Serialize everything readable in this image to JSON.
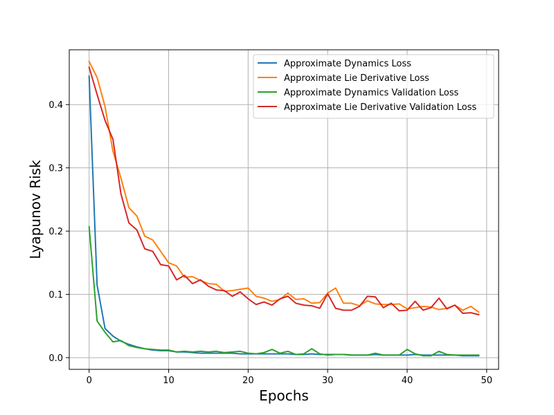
{
  "chart_data": {
    "type": "line",
    "xlabel": "Epochs",
    "ylabel": "Lyapunov Risk",
    "xlim": [
      -2.5,
      51.5
    ],
    "ylim": [
      -0.0185,
      0.4866
    ],
    "xticks": [
      0,
      10,
      20,
      30,
      40,
      50
    ],
    "yticks": [
      0.0,
      0.1,
      0.2,
      0.3,
      0.4
    ],
    "ytick_labels": [
      "0.0",
      "0.1",
      "0.2",
      "0.3",
      "0.4"
    ],
    "grid": true,
    "legend_position": "top-right",
    "x": [
      0,
      1,
      2,
      3,
      4,
      5,
      6,
      7,
      8,
      9,
      10,
      11,
      12,
      13,
      14,
      15,
      16,
      17,
      18,
      19,
      20,
      21,
      22,
      23,
      24,
      25,
      26,
      27,
      28,
      29,
      30,
      31,
      32,
      33,
      34,
      35,
      36,
      37,
      38,
      39,
      40,
      41,
      42,
      43,
      44,
      45,
      46,
      47,
      48,
      49
    ],
    "series": [
      {
        "name": "Approximate Dynamics Loss",
        "color": "#1f77b4",
        "values": [
          0.445,
          0.115,
          0.046,
          0.034,
          0.026,
          0.021,
          0.017,
          0.014,
          0.012,
          0.011,
          0.011,
          0.009,
          0.009,
          0.008,
          0.007,
          0.007,
          0.007,
          0.007,
          0.007,
          0.006,
          0.006,
          0.006,
          0.006,
          0.006,
          0.006,
          0.006,
          0.005,
          0.005,
          0.006,
          0.005,
          0.005,
          0.005,
          0.005,
          0.004,
          0.004,
          0.004,
          0.005,
          0.004,
          0.004,
          0.004,
          0.004,
          0.005,
          0.004,
          0.004,
          0.004,
          0.004,
          0.004,
          0.003,
          0.003,
          0.003
        ]
      },
      {
        "name": "Approximate Lie Derivative Loss",
        "color": "#ff7f0e",
        "values": [
          0.468,
          0.443,
          0.397,
          0.326,
          0.284,
          0.237,
          0.224,
          0.192,
          0.186,
          0.168,
          0.15,
          0.145,
          0.127,
          0.128,
          0.122,
          0.117,
          0.116,
          0.105,
          0.106,
          0.108,
          0.11,
          0.097,
          0.094,
          0.089,
          0.092,
          0.102,
          0.092,
          0.093,
          0.086,
          0.087,
          0.102,
          0.11,
          0.086,
          0.086,
          0.082,
          0.09,
          0.085,
          0.084,
          0.084,
          0.085,
          0.077,
          0.079,
          0.081,
          0.08,
          0.076,
          0.078,
          0.083,
          0.075,
          0.081,
          0.072
        ]
      },
      {
        "name": "Approximate Dynamics Validation Loss",
        "color": "#2ca02c",
        "values": [
          0.207,
          0.058,
          0.04,
          0.025,
          0.027,
          0.019,
          0.016,
          0.014,
          0.013,
          0.012,
          0.012,
          0.009,
          0.01,
          0.009,
          0.01,
          0.009,
          0.01,
          0.008,
          0.009,
          0.01,
          0.007,
          0.006,
          0.008,
          0.013,
          0.007,
          0.01,
          0.005,
          0.006,
          0.014,
          0.006,
          0.004,
          0.005,
          0.005,
          0.004,
          0.004,
          0.004,
          0.007,
          0.004,
          0.004,
          0.004,
          0.013,
          0.006,
          0.003,
          0.003,
          0.01,
          0.005,
          0.004,
          0.004,
          0.004,
          0.004
        ]
      },
      {
        "name": "Approximate Lie Derivative Validation Loss",
        "color": "#d62728",
        "values": [
          0.459,
          0.416,
          0.375,
          0.345,
          0.259,
          0.213,
          0.202,
          0.172,
          0.168,
          0.147,
          0.145,
          0.123,
          0.13,
          0.117,
          0.123,
          0.113,
          0.107,
          0.106,
          0.097,
          0.104,
          0.093,
          0.084,
          0.088,
          0.083,
          0.093,
          0.097,
          0.086,
          0.083,
          0.082,
          0.078,
          0.101,
          0.078,
          0.075,
          0.075,
          0.081,
          0.097,
          0.096,
          0.079,
          0.086,
          0.074,
          0.075,
          0.089,
          0.075,
          0.079,
          0.094,
          0.077,
          0.083,
          0.07,
          0.071,
          0.068
        ]
      }
    ]
  }
}
